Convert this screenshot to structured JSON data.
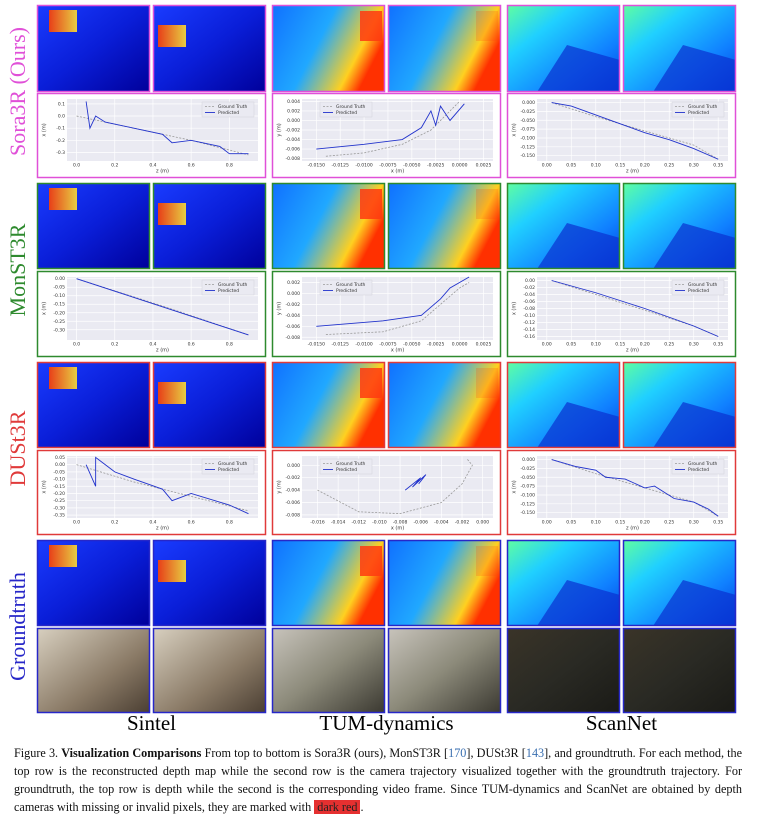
{
  "rows": [
    {
      "label": "Sora3R (Ours)",
      "color": "#e050d8"
    },
    {
      "label": "MonST3R",
      "color": "#2e8a2e"
    },
    {
      "label": "DUSt3R",
      "color": "#e03a3a"
    },
    {
      "label": "Groundtruth",
      "color": "#2727c8"
    }
  ],
  "columns": [
    "Sintel",
    "TUM-dynamics",
    "ScanNet"
  ],
  "legend": [
    "Ground Truth",
    "Predicted"
  ],
  "plots": [
    [
      {
        "xlabel": "z (m)",
        "ylabel": "x (m)",
        "xlim": [
          -0.05,
          0.95
        ],
        "ylim": [
          -0.37,
          0.14
        ],
        "xticks": [
          "0.0",
          "0.2",
          "0.4",
          "0.6",
          "0.8"
        ],
        "yticks": [
          "0.1",
          "0.0",
          "-0.1",
          "-0.2",
          "-0.3"
        ],
        "gt": [
          [
            0.0,
            0.0
          ],
          [
            0.3,
            -0.1
          ],
          [
            0.6,
            -0.2
          ],
          [
            0.9,
            -0.32
          ]
        ],
        "pred": [
          [
            0.05,
            0.12
          ],
          [
            0.07,
            -0.1
          ],
          [
            0.1,
            0.0
          ],
          [
            0.15,
            -0.05
          ],
          [
            0.3,
            -0.1
          ],
          [
            0.45,
            -0.15
          ],
          [
            0.5,
            -0.22
          ],
          [
            0.6,
            -0.2
          ],
          [
            0.75,
            -0.25
          ],
          [
            0.8,
            -0.31
          ],
          [
            0.9,
            -0.31
          ]
        ]
      },
      {
        "xlabel": "x (m)",
        "ylabel": "y (m)",
        "xlim": [
          -0.0165,
          0.0035
        ],
        "ylim": [
          -0.0085,
          0.0045
        ],
        "xticks": [
          "-0.0150",
          "-0.0125",
          "-0.0100",
          "-0.0075",
          "-0.0050",
          "-0.0025",
          "0.0000",
          "0.0025"
        ],
        "yticks": [
          "0.004",
          "0.002",
          "0.000",
          "-0.002",
          "-0.004",
          "-0.006",
          "-0.008"
        ],
        "gt": [
          [
            -0.014,
            -0.0075
          ],
          [
            -0.01,
            -0.0068
          ],
          [
            -0.006,
            -0.005
          ],
          [
            -0.003,
            -0.002
          ],
          [
            -0.001,
            0.002
          ],
          [
            0.0,
            0.004
          ]
        ],
        "pred": [
          [
            -0.015,
            -0.006
          ],
          [
            -0.01,
            -0.005
          ],
          [
            -0.006,
            -0.004
          ],
          [
            -0.004,
            -0.0015
          ],
          [
            -0.003,
            0.002
          ],
          [
            -0.0025,
            -0.001
          ],
          [
            -0.002,
            0.003
          ],
          [
            -0.001,
            0.0
          ],
          [
            0.0005,
            0.0035
          ]
        ]
      },
      {
        "xlabel": "z (m)",
        "ylabel": "x (m)",
        "xlim": [
          -0.02,
          0.37
        ],
        "ylim": [
          -0.165,
          0.01
        ],
        "xticks": [
          "0.00",
          "0.05",
          "0.10",
          "0.15",
          "0.20",
          "0.25",
          "0.30",
          "0.35"
        ],
        "yticks": [
          "0.000",
          "-0.025",
          "-0.050",
          "-0.075",
          "-0.100",
          "-0.125",
          "-0.150"
        ],
        "gt": [
          [
            0.01,
            0.0
          ],
          [
            0.1,
            -0.04
          ],
          [
            0.2,
            -0.08
          ],
          [
            0.3,
            -0.12
          ],
          [
            0.35,
            -0.16
          ]
        ],
        "pred": [
          [
            0.01,
            0.0
          ],
          [
            0.05,
            -0.01
          ],
          [
            0.1,
            -0.035
          ],
          [
            0.15,
            -0.06
          ],
          [
            0.2,
            -0.085
          ],
          [
            0.25,
            -0.105
          ],
          [
            0.3,
            -0.13
          ],
          [
            0.35,
            -0.16
          ]
        ]
      }
    ],
    [
      {
        "xlabel": "z (m)",
        "ylabel": "x (m)",
        "xlim": [
          -0.05,
          0.95
        ],
        "ylim": [
          -0.36,
          0.01
        ],
        "xticks": [
          "0.0",
          "0.2",
          "0.4",
          "0.6",
          "0.8"
        ],
        "yticks": [
          "0.00",
          "-0.05",
          "-0.10",
          "-0.15",
          "-0.20",
          "-0.25",
          "-0.30"
        ],
        "gt": [
          [
            0.0,
            0.0
          ],
          [
            0.45,
            -0.16
          ],
          [
            0.9,
            -0.33
          ]
        ],
        "pred": [
          [
            0.0,
            0.0
          ],
          [
            0.3,
            -0.11
          ],
          [
            0.6,
            -0.22
          ],
          [
            0.9,
            -0.33
          ]
        ]
      },
      {
        "xlabel": "x (m)",
        "ylabel": "y (m)",
        "xlim": [
          -0.0165,
          0.0035
        ],
        "ylim": [
          -0.0085,
          0.003
        ],
        "xticks": [
          "-0.0150",
          "-0.0125",
          "-0.0100",
          "-0.0075",
          "-0.0050",
          "-0.0025",
          "0.0000",
          "0.0025"
        ],
        "yticks": [
          "0.002",
          "0.000",
          "-0.002",
          "-0.004",
          "-0.006",
          "-0.008"
        ],
        "gt": [
          [
            -0.014,
            -0.0075
          ],
          [
            -0.008,
            -0.007
          ],
          [
            -0.004,
            -0.005
          ],
          [
            -0.002,
            -0.002
          ],
          [
            0.0,
            0.001
          ],
          [
            0.001,
            0.002
          ]
        ],
        "pred": [
          [
            -0.015,
            -0.006
          ],
          [
            -0.008,
            -0.005
          ],
          [
            -0.004,
            -0.004
          ],
          [
            -0.002,
            -0.001
          ],
          [
            -0.001,
            0.001
          ],
          [
            0.001,
            0.003
          ]
        ]
      },
      {
        "xlabel": "z (m)",
        "ylabel": "x (m)",
        "xlim": [
          -0.02,
          0.37
        ],
        "ylim": [
          -0.17,
          0.01
        ],
        "xticks": [
          "0.00",
          "0.05",
          "0.10",
          "0.15",
          "0.20",
          "0.25",
          "0.30",
          "0.35"
        ],
        "yticks": [
          "0.00",
          "-0.02",
          "-0.04",
          "-0.06",
          "-0.08",
          "-0.10",
          "-0.12",
          "-0.14",
          "-0.16"
        ],
        "gt": [
          [
            0.01,
            0.0
          ],
          [
            0.1,
            -0.04
          ],
          [
            0.2,
            -0.085
          ],
          [
            0.3,
            -0.13
          ],
          [
            0.35,
            -0.16
          ]
        ],
        "pred": [
          [
            0.01,
            0.0
          ],
          [
            0.1,
            -0.035
          ],
          [
            0.2,
            -0.08
          ],
          [
            0.3,
            -0.13
          ],
          [
            0.35,
            -0.16
          ]
        ]
      }
    ],
    [
      {
        "xlabel": "z (m)",
        "ylabel": "x (m)",
        "xlim": [
          -0.05,
          0.95
        ],
        "ylim": [
          -0.37,
          0.06
        ],
        "xticks": [
          "0.0",
          "0.2",
          "0.4",
          "0.6",
          "0.8"
        ],
        "yticks": [
          "0.05",
          "0.00",
          "-0.05",
          "-0.10",
          "-0.15",
          "-0.20",
          "-0.25",
          "-0.30",
          "-0.35"
        ],
        "gt": [
          [
            0.0,
            0.0
          ],
          [
            0.3,
            -0.12
          ],
          [
            0.6,
            -0.22
          ],
          [
            0.9,
            -0.32
          ]
        ],
        "pred": [
          [
            0.05,
            0.0
          ],
          [
            0.1,
            -0.15
          ],
          [
            0.1,
            0.05
          ],
          [
            0.15,
            0.0
          ],
          [
            0.2,
            -0.05
          ],
          [
            0.3,
            -0.1
          ],
          [
            0.45,
            -0.17
          ],
          [
            0.5,
            -0.25
          ],
          [
            0.6,
            -0.2
          ],
          [
            0.8,
            -0.28
          ],
          [
            0.9,
            -0.34
          ]
        ]
      },
      {
        "xlabel": "x (m)",
        "ylabel": "y (m)",
        "xlim": [
          -0.0175,
          0.001
        ],
        "ylim": [
          -0.0085,
          0.0015
        ],
        "xticks": [
          "-0.016",
          "-0.014",
          "-0.012",
          "-0.010",
          "-0.008",
          "-0.006",
          "-0.004",
          "-0.002",
          "0.000"
        ],
        "yticks": [
          "0.000",
          "-0.002",
          "-0.004",
          "-0.006",
          "-0.008"
        ],
        "gt": [
          [
            -0.016,
            -0.004
          ],
          [
            -0.012,
            -0.0075
          ],
          [
            -0.008,
            -0.0078
          ],
          [
            -0.004,
            -0.006
          ],
          [
            -0.002,
            -0.003
          ],
          [
            -0.001,
            0.0
          ],
          [
            -0.0015,
            0.001
          ]
        ],
        "pred": [
          [
            -0.0075,
            -0.004
          ],
          [
            -0.006,
            -0.002
          ],
          [
            -0.0068,
            -0.0035
          ],
          [
            -0.0055,
            -0.0015
          ],
          [
            -0.0062,
            -0.003
          ]
        ]
      },
      {
        "xlabel": "z (m)",
        "ylabel": "x (m)",
        "xlim": [
          -0.02,
          0.37
        ],
        "ylim": [
          -0.165,
          0.01
        ],
        "xticks": [
          "0.00",
          "0.05",
          "0.10",
          "0.15",
          "0.20",
          "0.25",
          "0.30",
          "0.35"
        ],
        "yticks": [
          "0.000",
          "-0.025",
          "-0.050",
          "-0.075",
          "-0.100",
          "-0.125",
          "-0.150"
        ],
        "gt": [
          [
            0.01,
            0.0
          ],
          [
            0.1,
            -0.04
          ],
          [
            0.2,
            -0.08
          ],
          [
            0.3,
            -0.12
          ],
          [
            0.35,
            -0.16
          ]
        ],
        "pred": [
          [
            0.01,
            0.0
          ],
          [
            0.06,
            -0.02
          ],
          [
            0.1,
            -0.03
          ],
          [
            0.12,
            -0.05
          ],
          [
            0.16,
            -0.055
          ],
          [
            0.2,
            -0.08
          ],
          [
            0.22,
            -0.075
          ],
          [
            0.26,
            -0.11
          ],
          [
            0.3,
            -0.12
          ],
          [
            0.33,
            -0.14
          ],
          [
            0.35,
            -0.16
          ]
        ]
      }
    ]
  ],
  "caption": {
    "label": "Figure 3.",
    "heading": "Visualization Comparisons",
    "text1": " From top to bottom is Sora3R (ours), MonST3R [",
    "cite1": "170",
    "text2": "], DUSt3R [",
    "cite2": "143",
    "text3": "], and groundtruth. For each method, the top row is the reconstructed depth map while the second row is the camera trajectory visualized together with the groundtruth trajectory. For groundtruth, the top row is depth while the second is the corresponding video frame. Since TUM-dynamics and ScanNet are obtained by depth cameras with missing or invalid pixels, they are marked with ",
    "highlight": "dark red",
    "text4": "."
  }
}
